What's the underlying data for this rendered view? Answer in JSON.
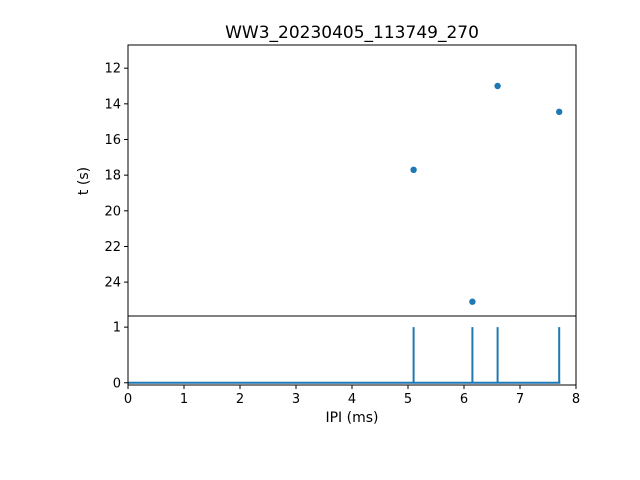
{
  "title": "WW3_20230405_113749_270",
  "chart_data": [
    {
      "type": "scatter",
      "subplot": "top",
      "title": "WW3_20230405_113749_270",
      "xlabel": "",
      "ylabel": "t (s)",
      "xlim": [
        0,
        8
      ],
      "ylim": [
        10.7,
        25.9
      ],
      "y_inverted": true,
      "yticks": [
        12,
        14,
        16,
        18,
        20,
        22,
        24
      ],
      "grid": false,
      "marker_color": "#1f77b4",
      "points": [
        {
          "x": 5.1,
          "y": 17.7
        },
        {
          "x": 6.15,
          "y": 25.1
        },
        {
          "x": 6.6,
          "y": 13.0
        },
        {
          "x": 7.7,
          "y": 14.45
        }
      ]
    },
    {
      "type": "stem",
      "subplot": "bottom",
      "xlabel": "IPI (ms)",
      "ylabel": "",
      "xlim": [
        0,
        8
      ],
      "xticks": [
        0,
        1,
        2,
        3,
        4,
        5,
        6,
        7,
        8
      ],
      "ylim": [
        -0.04,
        1.2
      ],
      "yticks": [
        0,
        1
      ],
      "grid": false,
      "line_color": "#1f77b4",
      "baseline_y": 0,
      "baseline_range": [
        0,
        7.72
      ],
      "spikes": [
        {
          "x": 5.1,
          "height": 1
        },
        {
          "x": 6.15,
          "height": 1
        },
        {
          "x": 6.6,
          "height": 1
        },
        {
          "x": 7.7,
          "height": 1
        }
      ]
    }
  ]
}
